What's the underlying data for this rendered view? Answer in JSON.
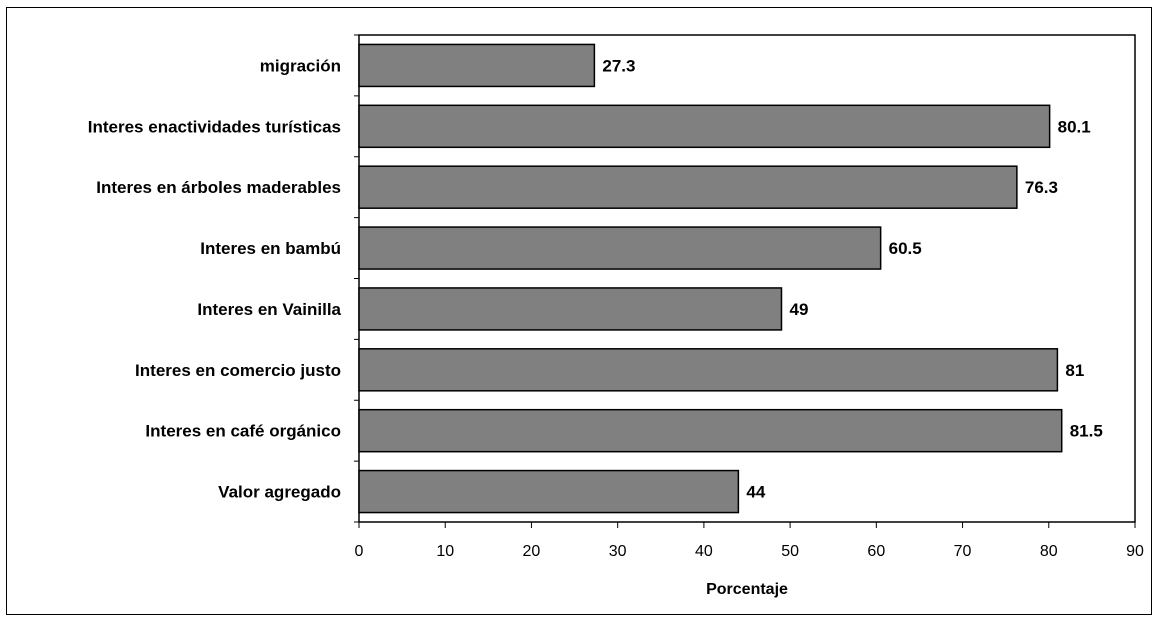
{
  "chart_data": {
    "type": "bar",
    "orientation": "horizontal",
    "categories": [
      "migración",
      "Interes enactividades turísticas",
      "Interes en árboles maderables",
      "Interes en bambú",
      "Interes en Vainilla",
      "Interes en comercio justo",
      "Interes en café orgánico",
      "Valor agregado"
    ],
    "values": [
      27.3,
      80.1,
      76.3,
      60.5,
      49,
      81,
      81.5,
      44
    ],
    "value_labels": [
      "27.3",
      "80.1",
      "76.3",
      "60.5",
      "49",
      "81",
      "81.5",
      "44"
    ],
    "xlabel": "Porcentaje",
    "ylabel": "",
    "xlim": [
      0,
      90
    ],
    "xticks": [
      "0",
      "10",
      "20",
      "30",
      "40",
      "50",
      "60",
      "70",
      "80",
      "90"
    ],
    "grid": false,
    "legend": "none",
    "bar_color": "#808080",
    "bar_edge_color": "#000000"
  }
}
